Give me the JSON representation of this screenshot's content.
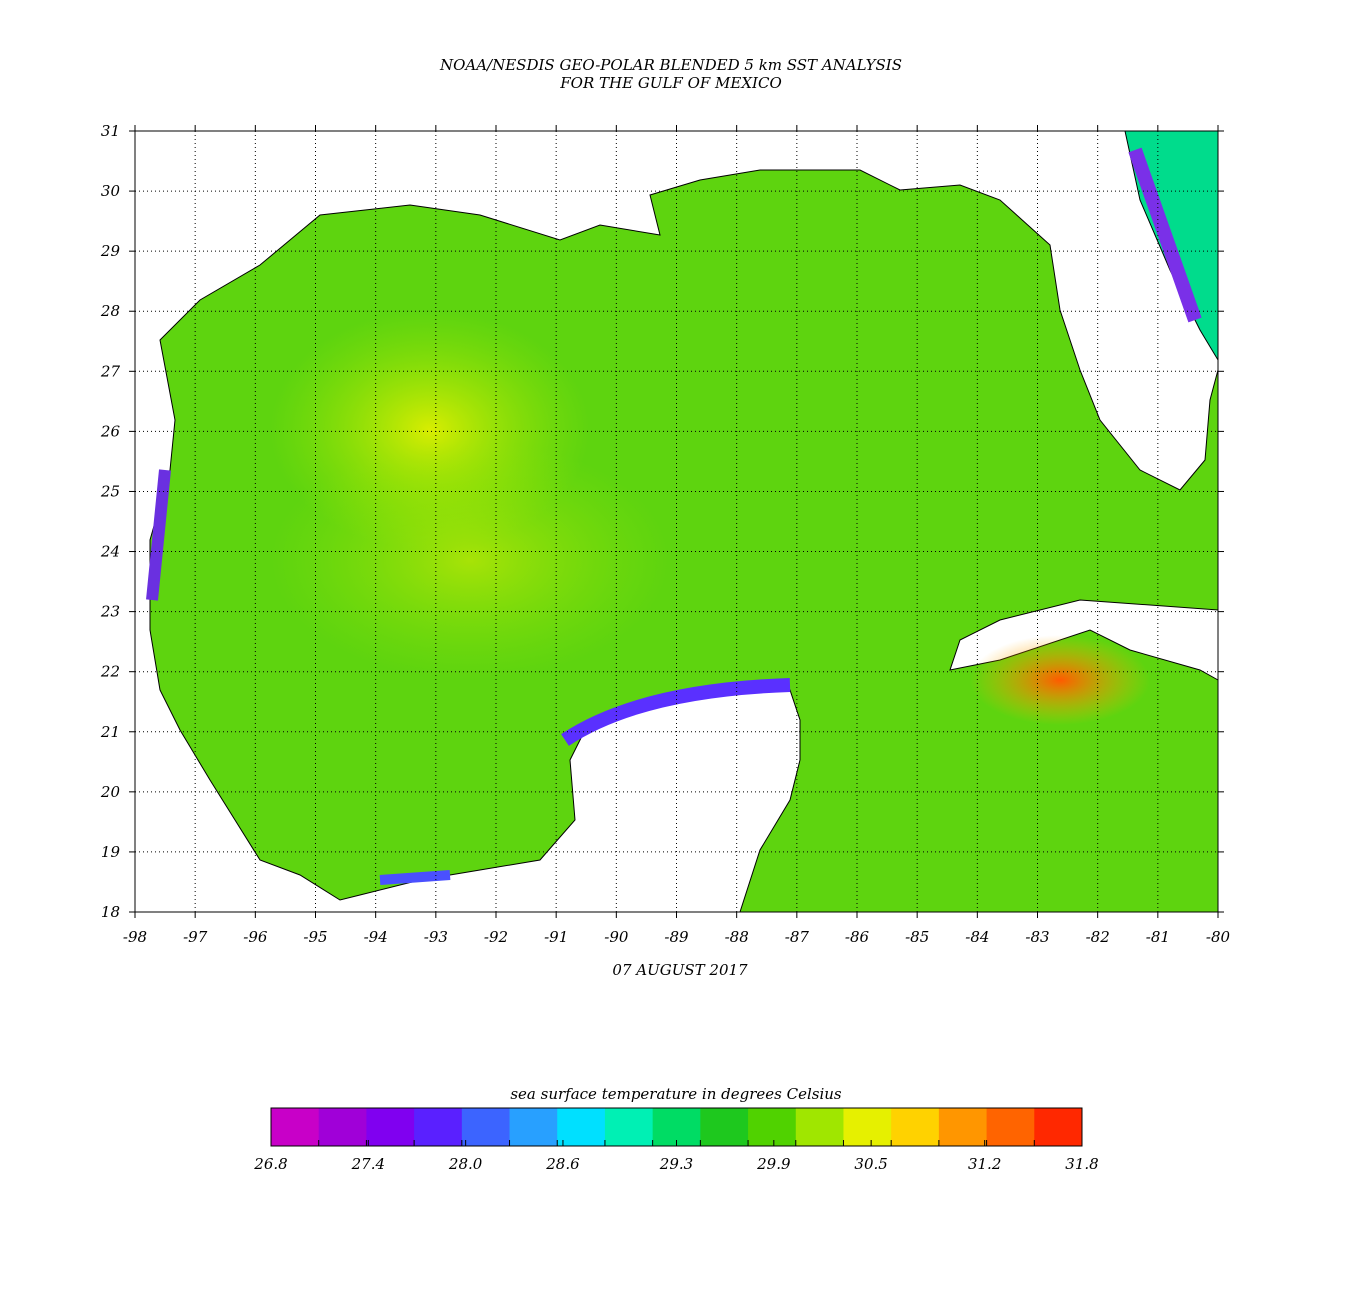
{
  "map": {
    "title": [
      "NOAA/NESDIS GEO-POLAR BLENDED 5 km SST ANALYSIS",
      "FOR THE GULF OF MEXICO"
    ],
    "date": "07 AUGUST 2017",
    "xlim": [
      -98,
      -80
    ],
    "ylim": [
      18,
      31
    ],
    "xticks": [
      -98,
      -97,
      -96,
      -95,
      -94,
      -93,
      -92,
      -91,
      -90,
      -89,
      -88,
      -87,
      -86,
      -85,
      -84,
      -83,
      -82,
      -81,
      -80
    ],
    "yticks": [
      18,
      19,
      20,
      21,
      22,
      23,
      24,
      25,
      26,
      27,
      28,
      29,
      30,
      31
    ],
    "grid": true
  },
  "colorbar": {
    "title": "sea surface temperature in degrees Celsius",
    "ticks": [
      26.8,
      27.4,
      {
        "value": 28,
        "label": "28.0"
      },
      28.6,
      29.3,
      29.9,
      30.5,
      31.2,
      31.8
    ],
    "colors": [
      "#c800c8",
      "#a000d8",
      "#8000f0",
      "#5a20ff",
      "#3c64ff",
      "#28a0ff",
      "#00e0ff",
      "#00f0b4",
      "#00dc64",
      "#1ec81e",
      "#50d200",
      "#a0e600",
      "#e6f000",
      "#ffd200",
      "#ff9600",
      "#ff6400",
      "#ff2800"
    ]
  }
}
